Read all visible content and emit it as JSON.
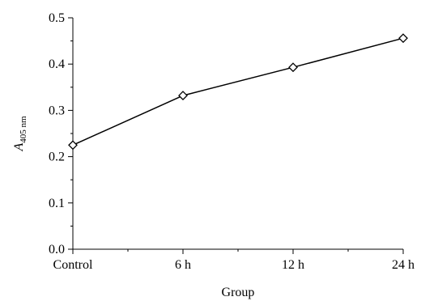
{
  "chart_data": {
    "type": "line",
    "categories": [
      "Control",
      "6 h",
      "12 h",
      "24 h"
    ],
    "series": [
      {
        "values": [
          0.225,
          0.332,
          0.393,
          0.456
        ],
        "marker": "diamond"
      }
    ],
    "xlabel": "Group",
    "ylabel": {
      "main": "A",
      "sub": "405 nm"
    },
    "ylim": [
      0.0,
      0.5
    ],
    "yticks": [
      0.0,
      0.1,
      0.2,
      0.3,
      0.4,
      0.5
    ],
    "ytick_labels": [
      "0.0",
      "0.1",
      "0.2",
      "0.3",
      "0.4",
      "0.5"
    ],
    "grid": false,
    "colors": {
      "line": "#000000",
      "marker_fill": "#ffffff"
    }
  }
}
